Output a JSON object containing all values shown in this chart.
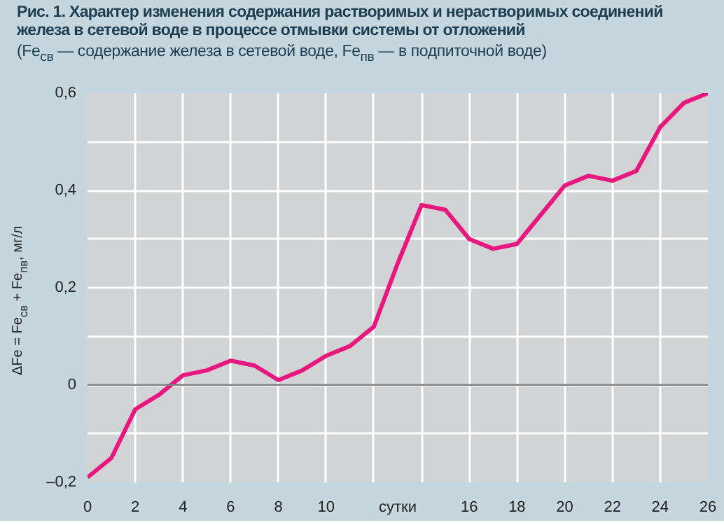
{
  "chart_data": {
    "type": "line",
    "title": "Рис. 1. Характер изменения содержания растворимых и нерастворимых соединений железа в сетевой воде в процессе отмывки системы от отложений",
    "subtitle": "(Fe$_{св}$ — содержание железа в сетевой воде, Fe$_{пв}$ — в подпиточной воде)",
    "xlabel": "сутки",
    "ylabel": "ΔFe = Fe$_{св}$ + Fe$_{пв}$, мг/л",
    "x": [
      0,
      1,
      2,
      3,
      4,
      5,
      6,
      7,
      8,
      9,
      10,
      11,
      12,
      13,
      14,
      15,
      16,
      17,
      18,
      19,
      20,
      21,
      22,
      23,
      24,
      25,
      26
    ],
    "series": [
      {
        "color": "#e8177f",
        "values": [
          -0.19,
          -0.15,
          -0.05,
          -0.02,
          0.02,
          0.03,
          0.05,
          0.04,
          0.01,
          0.03,
          0.06,
          0.08,
          0.12,
          0.25,
          0.37,
          0.36,
          0.3,
          0.28,
          0.29,
          0.35,
          0.41,
          0.43,
          0.42,
          0.44,
          0.53,
          0.58,
          0.6
        ]
      }
    ],
    "xlim": [
      0,
      26
    ],
    "ylim": [
      -0.2,
      0.6
    ],
    "xticks": [
      0,
      2,
      4,
      6,
      8,
      10,
      {
        "value": 12,
        "label": null
      },
      {
        "value": 14,
        "label": null
      },
      16,
      18,
      20,
      22,
      24,
      26
    ],
    "yticks": [
      {
        "value": -0.2,
        "label": "–0,2"
      },
      {
        "value": -0.1,
        "label": null
      },
      {
        "value": 0,
        "label": "0"
      },
      {
        "value": 0.1,
        "label": null
      },
      {
        "value": 0.2,
        "label": "0,2"
      },
      {
        "value": 0.3,
        "label": null
      },
      {
        "value": 0.4,
        "label": "0,4"
      },
      {
        "value": 0.5,
        "label": null
      },
      {
        "value": 0.6,
        "label": "0,6"
      }
    ],
    "ref_lines": [
      {
        "axis": "y",
        "value": 0,
        "color": "#808080"
      }
    ],
    "grid": true,
    "marker": "none",
    "line_style": "solid"
  }
}
